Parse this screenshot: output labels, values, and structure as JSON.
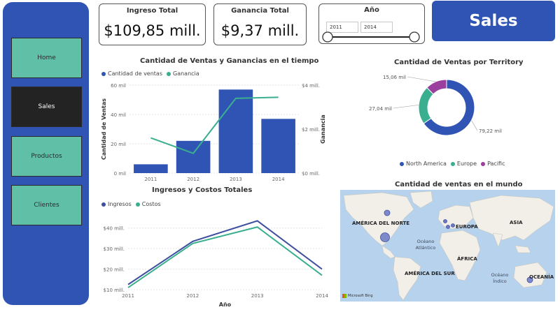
{
  "nav": {
    "items": [
      {
        "label": "Home"
      },
      {
        "label": "Sales"
      },
      {
        "label": "Productos"
      },
      {
        "label": "Clientes"
      }
    ]
  },
  "kpi": {
    "ingreso": {
      "title": "Ingreso Total",
      "value": "$109,85 mill."
    },
    "ganancia": {
      "title": "Ganancia Total",
      "value": "$9,37 mill."
    }
  },
  "slicer": {
    "title": "Año",
    "from": "2011",
    "to": "2014"
  },
  "page_title": "Sales",
  "colors": {
    "blue": "#3054b4",
    "teal": "#3aaf8f",
    "purple": "#9b3f9e",
    "navy": "#3e4fa0"
  },
  "chart_data": [
    {
      "type": "bar",
      "title": "Cantidad de Ventas y Ganancias en el tiempo",
      "legend": [
        "Cantidad de ventas",
        "Ganancia"
      ],
      "categories": [
        "2011",
        "2012",
        "2013",
        "2014"
      ],
      "series": [
        {
          "name": "Cantidad de ventas",
          "values": [
            6,
            22,
            57,
            37
          ]
        },
        {
          "name": "Ganancia",
          "values": [
            1.6,
            0.9,
            3.4,
            3.45
          ]
        }
      ],
      "ylabel": "Cantidad de Ventas",
      "y2label": "Ganancia",
      "y_ticks": [
        "0 mil",
        "20 mil",
        "40 mil",
        "60 mil"
      ],
      "y2_ticks": [
        "$0 mill.",
        "$2 mill.",
        "$4 mill."
      ],
      "ylim": [
        0,
        60
      ],
      "y2lim": [
        0,
        4
      ]
    },
    {
      "type": "line",
      "title": "Ingresos y Costos Totales",
      "legend": [
        "Ingresos",
        "Costos"
      ],
      "categories": [
        "2011",
        "2012",
        "2013",
        "2014"
      ],
      "series": [
        {
          "name": "Ingresos",
          "values": [
            12.5,
            33.5,
            43.5,
            20
          ]
        },
        {
          "name": "Costos",
          "values": [
            11,
            32.5,
            40.5,
            17
          ]
        }
      ],
      "xlabel": "Año",
      "y_ticks": [
        "$10 mill.",
        "$20 mill.",
        "$30 mill.",
        "$40 mill."
      ],
      "ylim": [
        10,
        45
      ]
    },
    {
      "type": "pie",
      "title": "Cantidad de Ventas por Territory",
      "categories": [
        "North America",
        "Europe",
        "Pacific"
      ],
      "values": [
        79.22,
        27.04,
        15.06
      ],
      "labels": [
        "79,22 mil",
        "27,04 mil",
        "15,06 mil"
      ]
    }
  ],
  "map": {
    "title": "Cantidad de ventas en el mundo",
    "labels": [
      "AMÉRICA DEL NORTE",
      "EUROPA",
      "ASIA",
      "Océano Atlántico",
      "ÁFRICA",
      "AMÉRICA DEL SUR",
      "Océano Índico",
      "OCEANÍA"
    ],
    "attribution": "Microsoft Bing"
  }
}
